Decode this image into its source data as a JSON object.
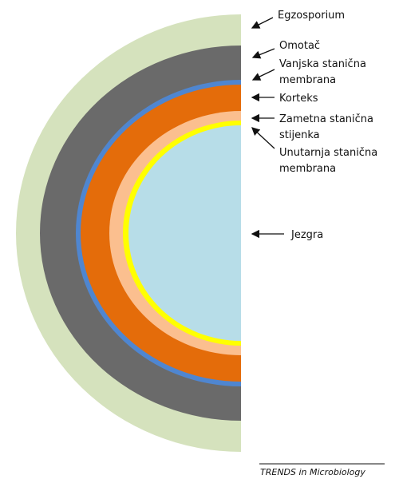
{
  "labels": [
    {
      "lines": [
        "Egzosporium"
      ]
    },
    {
      "lines": [
        "Omotač"
      ]
    },
    {
      "lines": [
        "Vanjska stanična",
        "membrana"
      ]
    },
    {
      "lines": [
        "Korteks"
      ]
    },
    {
      "lines": [
        "Zametna stanična",
        "stijenka"
      ]
    },
    {
      "lines": [
        "Unutarnja stanična",
        "membrana"
      ]
    },
    {
      "lines": [
        "Jezgra"
      ]
    }
  ],
  "footer": {
    "source": "TRENDS in Microbiology"
  }
}
